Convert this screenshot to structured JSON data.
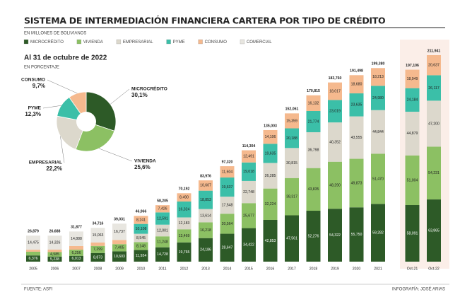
{
  "chart_data": [
    {
      "type": "stacked-bar",
      "title": "SISTEMA DE INTERMEDIACIÓN FINANCIERA CARTERA POR TIPO DE CRÉDITO",
      "subtitle": "EN MILLONES DE BOLIVIANOS",
      "categories": [
        "2005",
        "2006",
        "2007",
        "2008",
        "2009",
        "2010",
        "2011",
        "2012",
        "2013",
        "2014",
        "2015",
        "2016",
        "2017",
        "2018",
        "2019",
        "2020",
        "2021",
        "Oct-21",
        "Oct-22"
      ],
      "series": [
        {
          "name": "MICROCRÉDITO",
          "color": "#2d5a27",
          "values": [
            6376,
            5238,
            6013,
            8873,
            10603,
            11924,
            14728,
            19765,
            24186,
            28647,
            34422,
            42853,
            47561,
            52276,
            54322,
            55750,
            59282,
            58091,
            63865
          ],
          "value_labels": [
            "6,376",
            "5,238",
            "6,013",
            "8,873",
            "10,603",
            "11,924",
            "14,728",
            "19,765",
            "24,186",
            "28,647",
            "34,422",
            "42,853",
            "47,561",
            "52,276",
            "54,322",
            "55,750",
            "59,282",
            "58,091",
            "63,865"
          ]
        },
        {
          "name": "VIVIENDA",
          "color": "#8cc063",
          "values": [
            3847,
            4585,
            6256,
            7299,
            7405,
            8148,
            11248,
            13469,
            16218,
            20564,
            25677,
            32224,
            38317,
            43835,
            48290,
            49873,
            51470,
            51004,
            54231
          ],
          "value_labels": [
            "3,847",
            "4,585",
            "6,256",
            "7,299",
            "7,405",
            "8,148",
            "11,248",
            "13,469",
            "16,218",
            "20,564",
            "25,677",
            "32,224",
            "38,317",
            "43,835",
            "48,290",
            "49,873",
            "51,470",
            "51,004",
            "54,231"
          ]
        },
        {
          "name": "EMPRESARIAL",
          "color": "#dcd8cc",
          "values": [
            null,
            null,
            null,
            null,
            null,
            8545,
            12001,
            12183,
            13614,
            17548,
            22748,
            26285,
            30815,
            36798,
            40352,
            43555,
            44844,
            44879,
            47200
          ],
          "value_labels": [
            null,
            null,
            null,
            null,
            null,
            "8,545",
            "12,001",
            "12,183",
            "13,614",
            "17,548",
            "22,748",
            "26,285",
            "30,815",
            "36,798",
            "40,352",
            "43,555",
            "44,844",
            "44,879",
            "47,200"
          ]
        },
        {
          "name": "PYME",
          "color": "#3bbfa8",
          "values": [
            null,
            null,
            null,
            null,
            null,
            10108,
            12591,
            16324,
            18853,
            19637,
            19018,
            19635,
            20188,
            21774,
            23019,
            23635,
            24980,
            24184,
            26117
          ],
          "value_labels": [
            null,
            null,
            null,
            null,
            null,
            "10,108",
            "12,591",
            "16,324",
            "18,853",
            "19,637",
            "19,018",
            "19,635",
            "20,188",
            "21,774",
            "23,019",
            "23,635",
            "24,980",
            "24,184",
            "26,117"
          ]
        },
        {
          "name": "CONSUMO",
          "color": "#f5b98e",
          "values": [
            2042,
            2539,
            3811,
            3480,
            4286,
            8241,
            7426,
            8490,
            10607,
            11604,
            12491,
            14106,
            15359,
            16132,
            18017,
            18680,
            18213,
            18949,
            20637
          ],
          "value_labels": [
            "2,042",
            "2,539",
            "3,811",
            "3,480",
            "4,286",
            "8,241",
            "7,426",
            "8,490",
            "10,607",
            "11,604",
            "12,491",
            "14,106",
            "15,359",
            "16,132",
            "18,017",
            "18,680",
            "18,213",
            "18,949",
            "20,637"
          ]
        },
        {
          "name": "COMERCIAL",
          "color": "#e8e6e0",
          "values": [
            14475,
            14326,
            14888,
            15063,
            16737,
            null,
            null,
            null,
            null,
            null,
            null,
            null,
            null,
            null,
            null,
            null,
            null,
            null,
            null
          ],
          "value_labels": [
            "14,475",
            "14,326",
            "14,888",
            "15,063",
            "16,737",
            null,
            null,
            null,
            null,
            null,
            null,
            null,
            null,
            null,
            null,
            null,
            null,
            null,
            null
          ]
        }
      ],
      "totals": {
        "values": [
          26879,
          26688,
          31877,
          34716,
          39031,
          46966,
          58205,
          70192,
          83976,
          97320,
          114304,
          135003,
          152061,
          170815,
          183760,
          191498,
          199380,
          197106,
          211941
        ],
        "value_labels": [
          "26,879",
          "26,688",
          "31,877",
          "34,716",
          "39,031",
          "46,966",
          "58,205",
          "70,192",
          "83,976",
          "97,320",
          "114,304",
          "135,003",
          "152,061",
          "170,815",
          "183,760",
          "191,498",
          "199,380",
          "197,106",
          "211,941"
        ]
      }
    },
    {
      "type": "donut",
      "title": "Al 31 de octubre de 2022",
      "subtitle": "EN PORCENTAJE",
      "categories": [
        "MICROCRÉDITO",
        "VIVIENDA",
        "EMPRESARIAL",
        "PYME",
        "CONSUMO"
      ],
      "values": [
        30.1,
        25.6,
        22.2,
        12.3,
        9.7
      ],
      "value_labels": [
        "30,1%",
        "25,6%",
        "22,2%",
        "12,3%",
        "9,7%"
      ],
      "colors": [
        "#2d5a27",
        "#8cc063",
        "#dcd8cc",
        "#3bbfa8",
        "#f5b98e"
      ]
    }
  ],
  "footer": {
    "source": "FUENTE: ASFI",
    "credit": "INFOGRAFÍA: JOSÉ ARIAS"
  }
}
